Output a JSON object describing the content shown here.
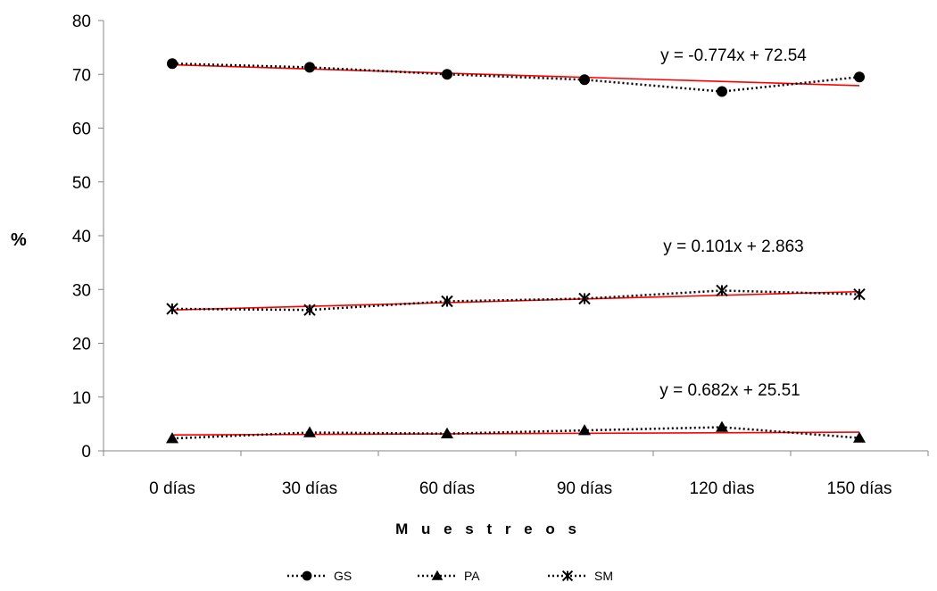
{
  "chart_data": {
    "type": "line",
    "title": "",
    "xlabel": "M u e s t r e o s",
    "ylabel": "%",
    "ylim": [
      0,
      80
    ],
    "yticks": [
      0,
      10,
      20,
      30,
      40,
      50,
      60,
      70,
      80
    ],
    "categories": [
      "0 días",
      "30 días",
      "60 días",
      "90 días",
      "120 dìas",
      "150 días"
    ],
    "grid": false,
    "legend_position": "bottom",
    "series": [
      {
        "name": "GS",
        "marker": "circle",
        "values": [
          72.0,
          71.3,
          70.0,
          69.0,
          66.8,
          69.5
        ],
        "trend": {
          "slope": -0.774,
          "intercept": 72.54,
          "label": "y = -0.774x + 72.54"
        }
      },
      {
        "name": "PA",
        "marker": "triangle",
        "values": [
          2.3,
          3.4,
          3.2,
          3.8,
          4.4,
          2.4
        ],
        "trend": {
          "slope": 0.101,
          "intercept": 2.863,
          "label": "y = 0.101x + 2.863"
        }
      },
      {
        "name": "SM",
        "marker": "star",
        "values": [
          26.4,
          26.2,
          27.8,
          28.3,
          29.8,
          29.1
        ],
        "trend": {
          "slope": 0.682,
          "intercept": 25.51,
          "label": "y = 0.682x + 25.51"
        }
      }
    ],
    "colors": {
      "series_line": "#000000",
      "trend_line": "#ff0000",
      "axis": "#868686"
    }
  }
}
